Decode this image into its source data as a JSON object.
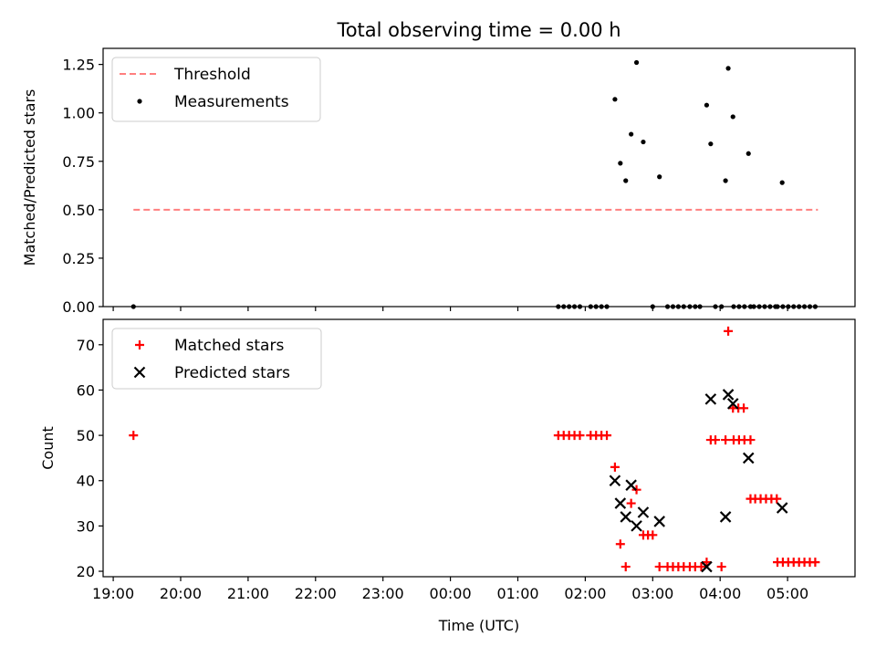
{
  "figure_title": "Total observing time = 0.00 h",
  "colors": {
    "threshold": "#ff7f7f",
    "measurements": "#000000",
    "matched": "#ff0000",
    "predicted": "#000000"
  },
  "chart_data": [
    {
      "type": "scatter",
      "title": "Total observing time = 0.00 h",
      "ylabel": "Matched/Predicted stars",
      "xlabel": "",
      "xlim": [
        18.85,
        30.0
      ],
      "ylim": [
        0,
        1.333
      ],
      "legend_position": "upper-left",
      "grid": false,
      "yticks": [
        {
          "value": 0.0,
          "label": "0.00"
        },
        {
          "value": 0.25,
          "label": "0.25"
        },
        {
          "value": 0.5,
          "label": "0.50"
        },
        {
          "value": 0.75,
          "label": "0.75"
        },
        {
          "value": 1.0,
          "label": "1.00"
        },
        {
          "value": 1.25,
          "label": "1.25"
        }
      ],
      "xticks": [
        19,
        20,
        21,
        22,
        23,
        24,
        25,
        26,
        27,
        28,
        29
      ],
      "xtick_labels_shown": false,
      "series": [
        {
          "name": "Threshold",
          "style": "dashed-line",
          "x": [
            19.3,
            29.45
          ],
          "y": [
            0.5,
            0.5
          ]
        },
        {
          "name": "Measurements",
          "style": "dot",
          "x": [
            19.3,
            25.6,
            25.68,
            25.76,
            25.84,
            25.92,
            26.08,
            26.16,
            26.24,
            26.32,
            26.44,
            26.52,
            26.6,
            26.68,
            26.76,
            26.86,
            27.0,
            27.1,
            27.22,
            27.3,
            27.38,
            27.46,
            27.55,
            27.63,
            27.7,
            27.8,
            27.86,
            28.2,
            28.28,
            28.36,
            28.45,
            28.85,
            28.93,
            29.01,
            29.09,
            29.17,
            29.25,
            29.33,
            29.41
          ],
          "y": [
            0.0,
            0.0,
            0.0,
            0.0,
            0.0,
            0.0,
            0.0,
            0.0,
            0.0,
            0.0,
            1.07,
            0.74,
            0.65,
            0.89,
            1.26,
            0.85,
            0.0,
            0.67,
            0.0,
            0.0,
            0.0,
            0.0,
            0.0,
            0.0,
            0.0,
            1.04,
            0.84,
            0.0,
            0.0,
            0.0,
            0.0,
            0.0,
            0.0,
            0.0,
            0.0,
            0.0,
            0.0,
            0.0,
            0.0
          ]
        },
        {
          "name": "",
          "style": "dot",
          "x": [
            27.93,
            28.02,
            28.08,
            28.12,
            28.19,
            28.5,
            28.58,
            28.66,
            28.74,
            28.82,
            28.92
          ],
          "y": [
            0.0,
            0.0,
            0.65,
            1.23,
            0.98,
            0.0,
            0.0,
            0.0,
            0.0,
            0.0,
            0.64
          ]
        },
        {
          "name": "",
          "style": "dot",
          "x": [
            28.42
          ],
          "y": [
            0.79
          ]
        }
      ]
    },
    {
      "type": "scatter",
      "title": "",
      "ylabel": "Count",
      "xlabel": "Time (UTC)",
      "xlim": [
        18.85,
        30.0
      ],
      "ylim": [
        18.8,
        75.6
      ],
      "legend_position": "upper-left",
      "grid": false,
      "yticks": [
        {
          "value": 20,
          "label": "20"
        },
        {
          "value": 30,
          "label": "30"
        },
        {
          "value": 40,
          "label": "40"
        },
        {
          "value": 50,
          "label": "50"
        },
        {
          "value": 60,
          "label": "60"
        },
        {
          "value": 70,
          "label": "70"
        }
      ],
      "xticks": [
        19,
        20,
        21,
        22,
        23,
        24,
        25,
        26,
        27,
        28,
        29
      ],
      "xtick_labels": [
        "19:00",
        "20:00",
        "21:00",
        "22:00",
        "23:00",
        "00:00",
        "01:00",
        "02:00",
        "03:00",
        "04:00",
        "05:00"
      ],
      "series": [
        {
          "name": "Matched stars",
          "style": "plus",
          "x": [
            19.3,
            25.6,
            25.68,
            25.76,
            25.84,
            25.92,
            26.08,
            26.16,
            26.24,
            26.32,
            26.44,
            26.52,
            26.6,
            26.68,
            26.76,
            26.86,
            26.93,
            27.0,
            27.1,
            27.22,
            27.3,
            27.38,
            27.46,
            27.55,
            27.63,
            27.72,
            27.8,
            27.86,
            28.2,
            28.28,
            28.36,
            28.45,
            28.85,
            28.93,
            29.01,
            29.09,
            29.17,
            29.25,
            29.33,
            29.41
          ],
          "y": [
            50,
            50,
            50,
            50,
            50,
            50,
            50,
            50,
            50,
            50,
            43,
            26,
            21,
            35,
            38,
            28,
            28,
            28,
            21,
            21,
            21,
            21,
            21,
            21,
            21,
            21,
            22,
            49,
            49,
            49,
            49,
            49,
            22,
            22,
            22,
            22,
            22,
            22,
            22,
            22
          ]
        },
        {
          "name": "",
          "style": "plus",
          "x": [
            27.93,
            28.02,
            28.08,
            28.12,
            28.19,
            28.27,
            28.35,
            28.45,
            28.52,
            28.6,
            28.68,
            28.76,
            28.84
          ],
          "y": [
            49,
            21,
            49,
            73,
            56,
            56,
            56,
            36,
            36,
            36,
            36,
            36,
            36
          ]
        },
        {
          "name": "Predicted stars",
          "style": "cross",
          "x": [
            26.44,
            26.52,
            26.6,
            26.68,
            26.76,
            26.86,
            27.1,
            27.8,
            27.86,
            28.08,
            28.12,
            28.19,
            28.42,
            28.92
          ],
          "y": [
            40,
            35,
            32,
            39,
            30,
            33,
            31,
            21,
            58,
            32,
            59,
            57,
            45,
            34
          ]
        }
      ]
    }
  ]
}
